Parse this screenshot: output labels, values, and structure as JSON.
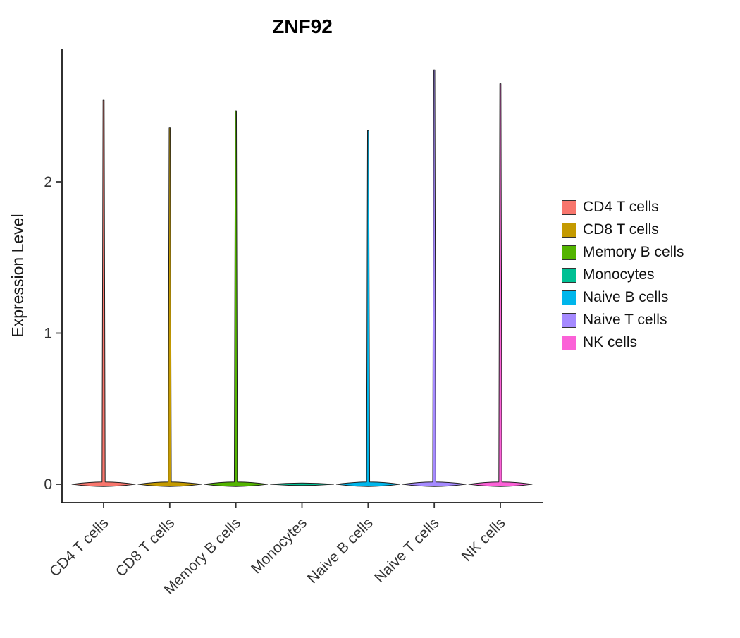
{
  "chart_data": {
    "type": "violin",
    "title": "ZNF92",
    "xlabel": "",
    "ylabel": "Expression Level",
    "categories": [
      "CD4 T cells",
      "CD8 T cells",
      "Memory B cells",
      "Monocytes",
      "Naive B cells",
      "Naive T cells",
      "NK cells"
    ],
    "colors": [
      "#F8766D",
      "#C49A00",
      "#53B400",
      "#00C094",
      "#00B6EB",
      "#A58AFF",
      "#FB61D7"
    ],
    "max_expression": [
      2.54,
      2.36,
      2.47,
      0.0,
      2.34,
      2.74,
      2.65
    ],
    "baseline_value": 0,
    "yticks": [
      0,
      1,
      2
    ],
    "ylim": [
      -0.08,
      2.9
    ],
    "grid": false,
    "legend": {
      "position": "right",
      "entries": [
        "CD4 T cells",
        "CD8 T cells",
        "Memory B cells",
        "Monocytes",
        "Naive B cells",
        "Naive T cells",
        "NK cells"
      ]
    },
    "note": "Violin plot of gene expression; distributions are concentrated at 0 with thin spikes up to the max expression per cell type; Monocytes have no spike."
  }
}
